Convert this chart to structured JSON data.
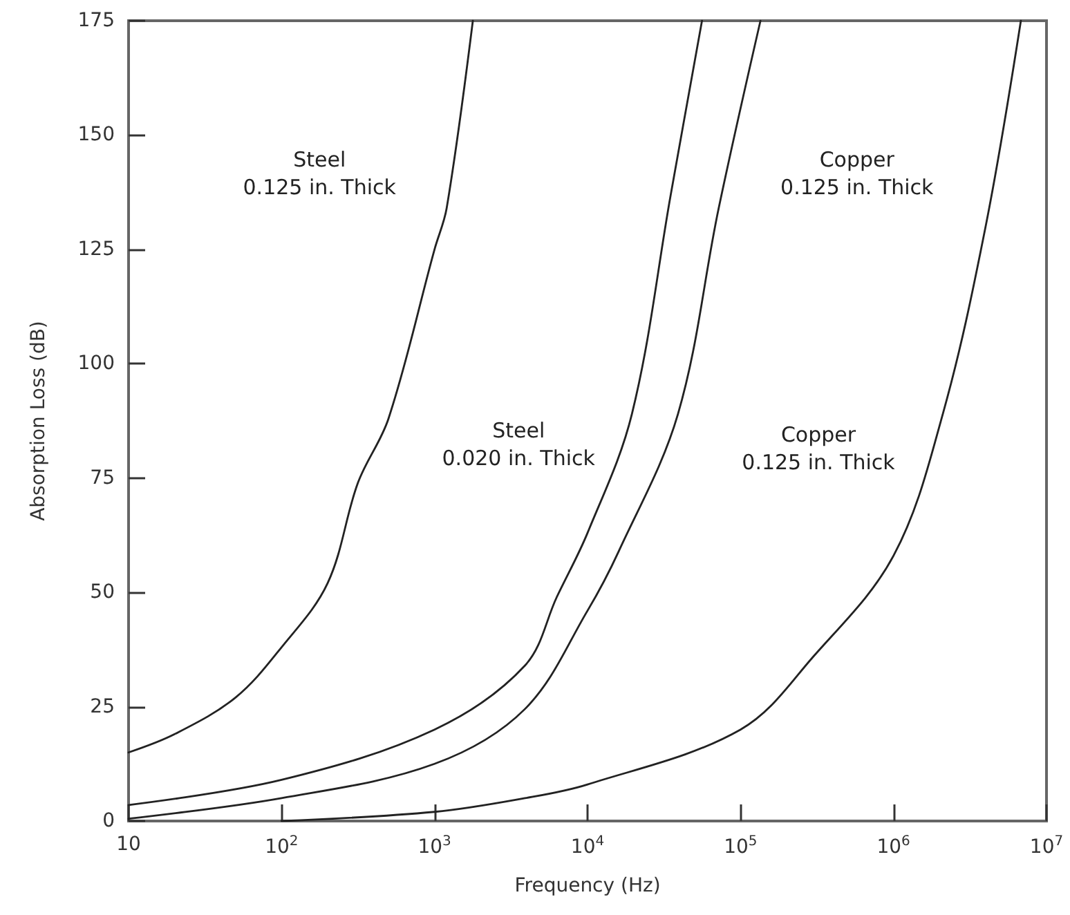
{
  "chart_data": {
    "type": "line",
    "xlabel": "Frequency (Hz)",
    "ylabel": "Absorption Loss (dB)",
    "log": "x",
    "xlim": [
      10,
      10000000
    ],
    "xticks": [
      10,
      {
        "value": 100,
        "label": "10$^{2}$"
      },
      {
        "value": 1000,
        "label": "10$^{3}$"
      },
      {
        "value": 10000,
        "label": "10$^{4}$"
      },
      {
        "value": 100000,
        "label": "10$^{5}$"
      },
      {
        "value": 1000000,
        "label": "10$^{6}$"
      },
      {
        "value": 10000000,
        "label": "10$^{7}$"
      }
    ],
    "ylim": [
      0,
      175
    ],
    "yticks": [
      0,
      25,
      50,
      75,
      100,
      125,
      150,
      175
    ],
    "grid": false,
    "marker": "none",
    "line_style": "solid",
    "series": [
      {
        "name": "Steel\n0.125 in. Thick",
        "color": "#222222",
        "x": [
          10,
          20,
          50,
          100,
          200,
          316,
          500,
          1000,
          1200,
          1780
        ],
        "values": [
          15,
          19,
          27,
          38,
          52,
          74,
          88,
          125,
          134,
          175
        ]
      },
      {
        "name": "Steel\n0.020 in. Thick",
        "color": "#222222",
        "x": [
          10,
          100,
          1000,
          3900,
          6300,
          10000,
          19500,
          35000,
          56000
        ],
        "values": [
          3.5,
          9,
          20,
          34,
          49,
          63,
          89,
          137,
          175
        ]
      },
      {
        "name": "Copper\n0.125 in. Thick",
        "color": "#222222",
        "x": [
          10,
          100,
          1000,
          3900,
          10000,
          16000,
          39000,
          72000,
          135000
        ],
        "values": [
          0.5,
          5,
          12.5,
          24.5,
          46,
          59,
          89,
          134,
          175
        ]
      },
      {
        "name": "Copper\n0.125 in. Thick",
        "color": "#222222",
        "x": [
          100,
          1000,
          3900,
          10000,
          100000,
          300000,
          1000000,
          2100000,
          4000000,
          6800000
        ],
        "values": [
          0,
          2,
          5,
          8,
          20,
          36,
          58,
          89,
          130,
          175
        ]
      }
    ]
  }
}
